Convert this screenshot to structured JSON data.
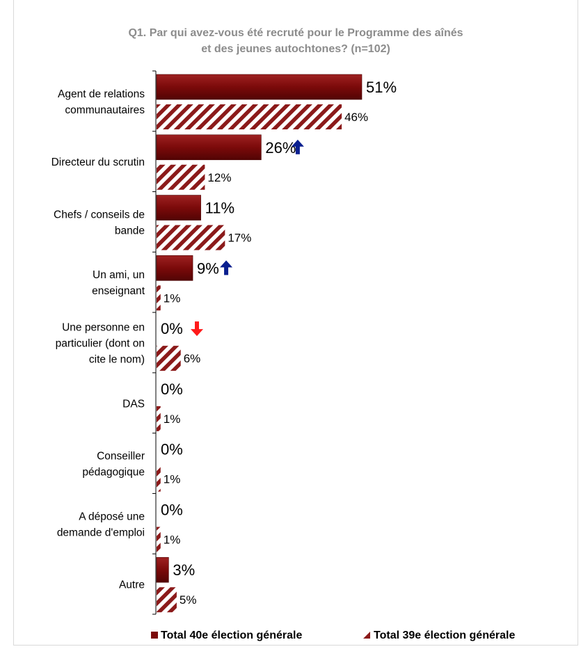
{
  "chart_data": {
    "type": "bar",
    "orientation": "horizontal",
    "title_lines": [
      "Q1. Par qui avez-vous été recruté pour le Programme des aînés",
      "et des jeunes autochtones? (n=102)"
    ],
    "categories": [
      [
        "Agent de relations",
        "communautaires"
      ],
      [
        "Directeur du scrutin"
      ],
      [
        "Chefs / conseils de",
        "bande"
      ],
      [
        "Un ami, un",
        "enseignant"
      ],
      [
        "Une personne en",
        "particulier (dont on",
        "cite le nom)"
      ],
      [
        "DAS"
      ],
      [
        "Conseiller",
        "pédagogique"
      ],
      [
        "A déposé une",
        "demande d'emploi"
      ],
      [
        "Autre"
      ]
    ],
    "series": [
      {
        "name": "Total 40e élection générale",
        "values": [
          51,
          26,
          11,
          9,
          0,
          0,
          0,
          0,
          3
        ],
        "labels": [
          "51%",
          "26%",
          "11%",
          "9%",
          "0%",
          "0%",
          "0%",
          "0%",
          "3%"
        ],
        "color": "#7b0a0a",
        "fill": "solid"
      },
      {
        "name": "Total 39e élection générale",
        "values": [
          46,
          12,
          17,
          1,
          6,
          1,
          1,
          1,
          5
        ],
        "labels": [
          "46%",
          "12%",
          "17%",
          "1%",
          "6%",
          "1%",
          "1%",
          "1%",
          "5%"
        ],
        "color": "#8b1a1a",
        "fill": "hatched"
      }
    ],
    "significance_arrows": [
      {
        "category_index": 1,
        "direction": "up",
        "color": "#0a1f8f"
      },
      {
        "category_index": 3,
        "direction": "up",
        "color": "#0a1f8f"
      },
      {
        "category_index": 4,
        "direction": "down",
        "color": "#ff1a1a"
      }
    ],
    "xlim": [
      0,
      100
    ],
    "legend_position": "bottom"
  }
}
